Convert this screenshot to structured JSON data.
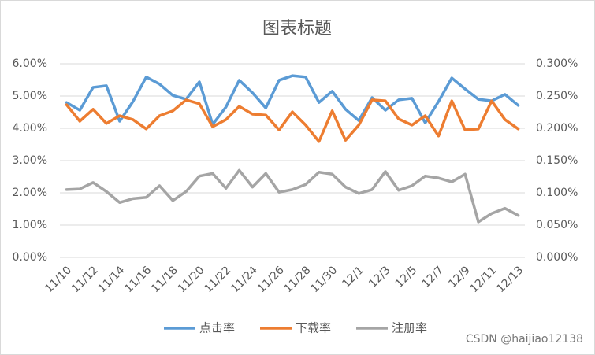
{
  "chart_data": {
    "type": "line",
    "title": "图表标题",
    "categories": [
      "11/10",
      null,
      "11/12",
      null,
      "11/14",
      null,
      "11/16",
      null,
      "11/18",
      null,
      "11/20",
      null,
      "11/22",
      null,
      "11/24",
      null,
      "11/26",
      null,
      "11/28",
      null,
      "11/30",
      null,
      "12/1",
      null,
      "12/3",
      null,
      "12/5",
      null,
      "12/7",
      null,
      "12/9",
      null,
      "12/11",
      null,
      "12/13"
    ],
    "series": [
      {
        "name": "点击率",
        "color": "#5b9bd5",
        "axis": "y",
        "values": [
          4.8,
          4.56,
          5.27,
          5.32,
          4.22,
          4.83,
          5.59,
          5.37,
          5.02,
          4.9,
          5.44,
          4.12,
          4.66,
          5.49,
          5.1,
          4.63,
          5.49,
          5.63,
          5.59,
          4.8,
          5.15,
          4.59,
          4.24,
          4.95,
          4.56,
          4.88,
          4.93,
          4.17,
          4.83,
          5.56,
          5.22,
          4.9,
          4.85,
          5.05,
          4.71
        ]
      },
      {
        "name": "下载率",
        "color": "#ed7d31",
        "axis": "y",
        "values": [
          4.73,
          4.22,
          4.59,
          4.15,
          4.39,
          4.27,
          3.98,
          4.39,
          4.54,
          4.88,
          4.76,
          4.05,
          4.27,
          4.68,
          4.44,
          4.41,
          3.95,
          4.51,
          4.1,
          3.59,
          4.54,
          3.63,
          4.1,
          4.88,
          4.85,
          4.29,
          4.1,
          4.39,
          3.76,
          4.85,
          3.95,
          3.98,
          4.85,
          4.27,
          3.98
        ]
      },
      {
        "name": "注册率",
        "color": "#a5a5a5",
        "axis": "y2",
        "values": [
          0.105,
          0.106,
          0.116,
          0.102,
          0.085,
          0.091,
          0.093,
          0.111,
          0.088,
          0.102,
          0.126,
          0.13,
          0.107,
          0.135,
          0.109,
          0.13,
          0.101,
          0.105,
          0.113,
          0.132,
          0.129,
          0.109,
          0.099,
          0.105,
          0.133,
          0.104,
          0.111,
          0.126,
          0.123,
          0.117,
          0.129,
          0.055,
          0.068,
          0.076,
          0.065
        ]
      }
    ],
    "ylim": [
      0,
      6
    ],
    "yticks": [
      {
        "value": 0,
        "label": "0.00%"
      },
      {
        "value": 1,
        "label": "1.00%"
      },
      {
        "value": 2,
        "label": "2.00%"
      },
      {
        "value": 3,
        "label": "3.00%"
      },
      {
        "value": 4,
        "label": "4.00%"
      },
      {
        "value": 5,
        "label": "5.00%"
      },
      {
        "value": 6,
        "label": "6.00%"
      }
    ],
    "y2lim": [
      0,
      0.3
    ],
    "y2ticks": [
      {
        "value": 0,
        "label": "0.000%"
      },
      {
        "value": 0.05,
        "label": "0.050%"
      },
      {
        "value": 0.1,
        "label": "0.100%"
      },
      {
        "value": 0.15,
        "label": "0.150%"
      },
      {
        "value": 0.2,
        "label": "0.200%"
      },
      {
        "value": 0.25,
        "label": "0.250%"
      },
      {
        "value": 0.3,
        "label": "0.300%"
      }
    ],
    "legend": "bottom",
    "watermark": "CSDN @haijiao12138"
  }
}
